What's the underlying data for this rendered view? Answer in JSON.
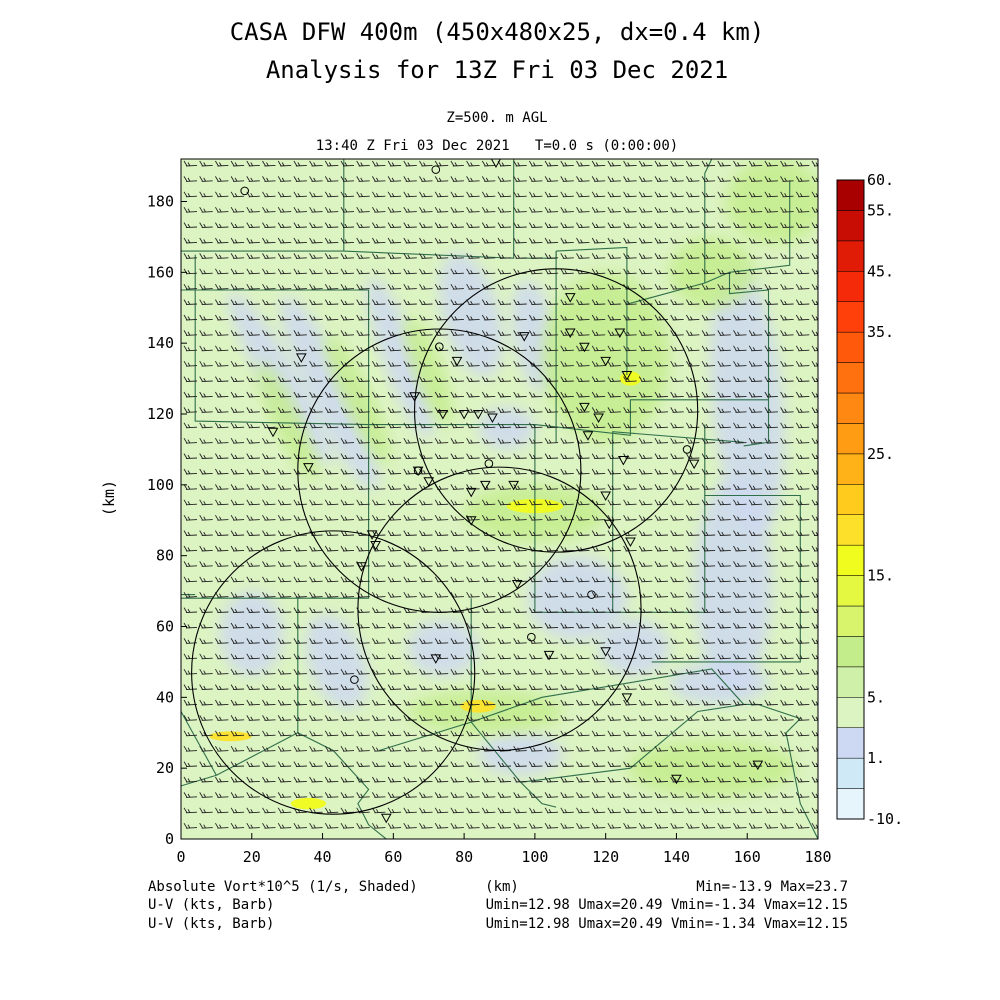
{
  "chart_data": {
    "type": "heatmap",
    "title": "CASA DFW 400m (450x480x25, dx=0.4 km)",
    "subtitle": "Analysis for 13Z Fri 03 Dec 2021",
    "level_label": "Z=500. m AGL",
    "time_label": "13:40 Z Fri 03 Dec 2021   T=0.0 s (0:00:00)",
    "xlabel": "(km)",
    "ylabel": "(km)",
    "xlim": [
      0,
      180
    ],
    "ylim": [
      0,
      192
    ],
    "x_ticks": [
      0,
      20,
      40,
      60,
      80,
      100,
      120,
      140,
      160,
      180
    ],
    "y_ticks": [
      0,
      20,
      40,
      60,
      80,
      100,
      120,
      140,
      160,
      180
    ],
    "colorbar": {
      "levels": [
        -10,
        -1,
        1,
        3,
        5,
        7.5,
        10,
        12.5,
        15,
        17.5,
        20,
        22.5,
        25,
        27.5,
        30,
        32.5,
        35,
        40,
        45,
        50,
        55,
        60
      ],
      "labels": [
        "60.",
        "55.",
        "45.",
        "35.",
        "25.",
        "15.",
        "5.",
        "1.",
        "-10."
      ],
      "label_values": [
        60,
        55,
        45,
        35,
        25,
        15,
        5,
        1,
        -10
      ],
      "colors": [
        "#e6f5fc",
        "#d0e9f6",
        "#cdd8f2",
        "#dcf3c2",
        "#cff0a8",
        "#c3ed8a",
        "#d8f46c",
        "#e4f842",
        "#f0fb1e",
        "#fde02a",
        "#ffcb1c",
        "#ffb118",
        "#ff9c14",
        "#ff8812",
        "#ff700f",
        "#ff5a0c",
        "#ff400a",
        "#f52a08",
        "#e01b06",
        "#c80e04",
        "#a80000"
      ]
    },
    "field_patches": [
      {
        "x": 42,
        "y": 126,
        "vort": 1.5,
        "rx": 6,
        "ry": 30,
        "angle": -25
      },
      {
        "x": 28,
        "y": 130,
        "vort": 1.5,
        "rx": 5,
        "ry": 28,
        "angle": -30
      },
      {
        "x": 62,
        "y": 136,
        "vort": 1.5,
        "rx": 5,
        "ry": 24,
        "angle": -20
      },
      {
        "x": 82,
        "y": 148,
        "vort": 1.5,
        "rx": 8,
        "ry": 18,
        "angle": -15
      },
      {
        "x": 100,
        "y": 142,
        "vort": 1.5,
        "rx": 6,
        "ry": 16,
        "angle": -10
      },
      {
        "x": 160,
        "y": 124,
        "vort": 1.5,
        "rx": 10,
        "ry": 38,
        "angle": -5
      },
      {
        "x": 156,
        "y": 72,
        "vort": 1.5,
        "rx": 11,
        "ry": 30,
        "angle": 0
      },
      {
        "x": 112,
        "y": 68,
        "vort": 1.5,
        "rx": 14,
        "ry": 12,
        "angle": 0
      },
      {
        "x": 74,
        "y": 54,
        "vort": 1.5,
        "rx": 10,
        "ry": 8,
        "angle": 0
      },
      {
        "x": 44,
        "y": 50,
        "vort": 1.5,
        "rx": 8,
        "ry": 14,
        "angle": -20
      },
      {
        "x": 20,
        "y": 58,
        "vort": 1.5,
        "rx": 9,
        "ry": 12,
        "angle": 0
      },
      {
        "x": 128,
        "y": 54,
        "vort": 1.5,
        "rx": 10,
        "ry": 8,
        "angle": 0
      },
      {
        "x": 96,
        "y": 24,
        "vort": 1.5,
        "rx": 12,
        "ry": 6,
        "angle": 0
      },
      {
        "x": 92,
        "y": 116,
        "vort": 1.5,
        "rx": 8,
        "ry": 6,
        "angle": 0
      },
      {
        "x": 152,
        "y": 44,
        "vort": 1.5,
        "rx": 14,
        "ry": 6,
        "angle": 0
      },
      {
        "x": 120,
        "y": 136,
        "vort": 9,
        "rx": 18,
        "ry": 24,
        "angle": 0
      },
      {
        "x": 168,
        "y": 180,
        "vort": 9,
        "rx": 14,
        "ry": 12,
        "angle": 0
      },
      {
        "x": 150,
        "y": 160,
        "vort": 9,
        "rx": 12,
        "ry": 10,
        "angle": 0
      },
      {
        "x": 100,
        "y": 92,
        "vort": 9,
        "rx": 20,
        "ry": 8,
        "angle": 0
      },
      {
        "x": 30,
        "y": 118,
        "vort": 9,
        "rx": 4,
        "ry": 18,
        "angle": -25
      },
      {
        "x": 50,
        "y": 124,
        "vort": 9,
        "rx": 4,
        "ry": 20,
        "angle": -25
      },
      {
        "x": 70,
        "y": 132,
        "vort": 9,
        "rx": 4,
        "ry": 16,
        "angle": -20
      },
      {
        "x": 86,
        "y": 36,
        "vort": 9,
        "rx": 22,
        "ry": 6,
        "angle": 0
      },
      {
        "x": 150,
        "y": 20,
        "vort": 9,
        "rx": 24,
        "ry": 8,
        "angle": 0
      },
      {
        "x": 100,
        "y": 94,
        "vort": 16,
        "rx": 8,
        "ry": 2,
        "angle": 0
      },
      {
        "x": 84,
        "y": 37.5,
        "vort": 19,
        "rx": 5,
        "ry": 1.8,
        "angle": 0
      },
      {
        "x": 14,
        "y": 29,
        "vort": 19,
        "rx": 6,
        "ry": 1.4,
        "angle": 0
      },
      {
        "x": 36,
        "y": 10,
        "vort": 16,
        "rx": 5,
        "ry": 1.6,
        "angle": 0
      },
      {
        "x": 127,
        "y": 130,
        "vort": 16,
        "rx": 3,
        "ry": 2,
        "angle": 0
      }
    ],
    "range_rings": [
      {
        "x": 43,
        "y": 47,
        "r": 40
      },
      {
        "x": 73,
        "y": 104,
        "r": 40
      },
      {
        "x": 90,
        "y": 65,
        "r": 40
      },
      {
        "x": 106,
        "y": 121,
        "r": 40
      }
    ],
    "station_triangles": [
      [
        34,
        136
      ],
      [
        26,
        115
      ],
      [
        36,
        105
      ],
      [
        51,
        77
      ],
      [
        54,
        86
      ],
      [
        55,
        83
      ],
      [
        66,
        125
      ],
      [
        67,
        104
      ],
      [
        70,
        101
      ],
      [
        72,
        51
      ],
      [
        74,
        120
      ],
      [
        78,
        135
      ],
      [
        80,
        120
      ],
      [
        82,
        98
      ],
      [
        82,
        90
      ],
      [
        84,
        120
      ],
      [
        86,
        100
      ],
      [
        88,
        119
      ],
      [
        89,
        191
      ],
      [
        94,
        100
      ],
      [
        95,
        72
      ],
      [
        97,
        142
      ],
      [
        104,
        52
      ],
      [
        110,
        153
      ],
      [
        110,
        143
      ],
      [
        114,
        122
      ],
      [
        114,
        139
      ],
      [
        115,
        114
      ],
      [
        118,
        119
      ],
      [
        120,
        135
      ],
      [
        120,
        97
      ],
      [
        120,
        53
      ],
      [
        121,
        89
      ],
      [
        124,
        143
      ],
      [
        125,
        107
      ],
      [
        126,
        131
      ],
      [
        127,
        84
      ],
      [
        126,
        40
      ],
      [
        140,
        17
      ],
      [
        145,
        106
      ],
      [
        163,
        21
      ],
      [
        58,
        6
      ]
    ],
    "station_circles": [
      [
        18,
        183
      ],
      [
        72,
        189
      ],
      [
        73,
        139
      ],
      [
        67,
        104
      ],
      [
        87,
        106
      ],
      [
        49,
        45
      ],
      [
        99,
        57
      ],
      [
        116,
        69
      ],
      [
        143,
        110
      ]
    ],
    "boundaries": [
      [
        [
          0,
          158
        ],
        [
          0,
          166
        ],
        [
          46,
          166
        ]
      ],
      [
        [
          46,
          193
        ],
        [
          46,
          166
        ]
      ],
      [
        [
          46,
          166
        ],
        [
          94,
          164
        ],
        [
          94,
          193
        ]
      ],
      [
        [
          96,
          164
        ],
        [
          106,
          164
        ],
        [
          106,
          166
        ]
      ],
      [
        [
          106,
          166
        ],
        [
          106,
          151
        ],
        [
          106,
          125
        ],
        [
          106,
          112
        ]
      ],
      [
        [
          106,
          166
        ],
        [
          126,
          167
        ],
        [
          126,
          151
        ],
        [
          148,
          157
        ]
      ],
      [
        [
          126,
          151
        ],
        [
          126,
          131
        ]
      ],
      [
        [
          148,
          157
        ],
        [
          148,
          188
        ],
        [
          150,
          192
        ]
      ],
      [
        [
          148,
          157
        ],
        [
          155,
          160
        ],
        [
          172,
          162
        ],
        [
          172,
          186
        ]
      ],
      [
        [
          155,
          160
        ],
        [
          155,
          154
        ],
        [
          166,
          155
        ],
        [
          166,
          112
        ],
        [
          159,
          111
        ]
      ],
      [
        [
          4,
          165
        ],
        [
          4,
          118
        ],
        [
          53,
          117
        ],
        [
          53,
          155
        ],
        [
          0,
          155
        ]
      ],
      [
        [
          53,
          117
        ],
        [
          53,
          68
        ],
        [
          0,
          68
        ]
      ],
      [
        [
          53,
          117
        ],
        [
          100,
          117
        ],
        [
          100,
          64
        ],
        [
          122,
          64
        ],
        [
          122,
          115
        ],
        [
          159,
          112
        ]
      ],
      [
        [
          100,
          117
        ],
        [
          127,
          114
        ],
        [
          127,
          124
        ],
        [
          166,
          124
        ]
      ],
      [
        [
          148,
          117
        ],
        [
          148,
          97
        ],
        [
          175,
          97
        ],
        [
          175,
          50
        ],
        [
          133,
          50
        ]
      ],
      [
        [
          148,
          97
        ],
        [
          148,
          64
        ],
        [
          122,
          64
        ]
      ],
      [
        [
          33,
          68
        ],
        [
          33,
          30
        ],
        [
          43,
          25
        ],
        [
          53,
          14
        ],
        [
          50,
          10
        ],
        [
          53,
          4
        ],
        [
          58,
          0
        ]
      ],
      [
        [
          33,
          30
        ],
        [
          10,
          18
        ],
        [
          0,
          15
        ]
      ],
      [
        [
          0,
          36
        ],
        [
          10,
          18
        ]
      ],
      [
        [
          82,
          68
        ],
        [
          82,
          33
        ],
        [
          96,
          16
        ],
        [
          102,
          10
        ],
        [
          106,
          9
        ]
      ],
      [
        [
          82,
          33
        ],
        [
          102,
          40
        ],
        [
          150,
          48
        ],
        [
          159,
          38
        ],
        [
          163,
          38
        ],
        [
          175,
          34
        ],
        [
          171,
          30
        ],
        [
          175,
          10
        ],
        [
          180,
          0
        ]
      ],
      [
        [
          56,
          25
        ],
        [
          82,
          33
        ]
      ],
      [
        [
          96,
          16
        ],
        [
          127,
          20
        ],
        [
          146,
          36
        ],
        [
          159,
          38
        ]
      ],
      [
        [
          0,
          69
        ],
        [
          4,
          69
        ]
      ]
    ],
    "wind_barb": {
      "angle_deg": -3,
      "speed_kts": 16
    },
    "footer": {
      "left_1": "Absolute Vort*10^5 (1/s, Shaded)",
      "left_2": "U-V (kts, Barb)",
      "left_3": "U-V (kts, Barb)",
      "center_unit": "(km)",
      "right_1": "Min=-13.9 Max=23.7",
      "right_2": "Umin=12.98 Umax=20.49 Vmin=-1.34 Vmax=12.15",
      "right_3": "Umin=12.98 Umax=20.49 Vmin=-1.34 Vmax=12.15"
    }
  }
}
